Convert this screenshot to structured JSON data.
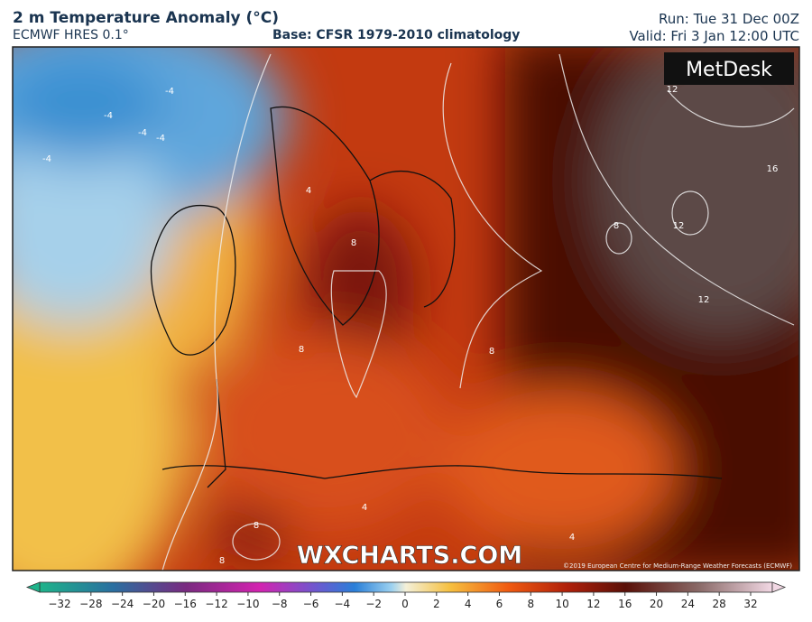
{
  "header": {
    "title": "2 m Temperature Anomaly (°C)",
    "model": "ECMWF HRES 0.1°",
    "base": "Base: CFSR 1979-2010 climatology",
    "run": "Run: Tue 31 Dec 00Z",
    "valid": "Valid: Fri 3 Jan 12:00 UTC"
  },
  "map": {
    "logo": "MetDesk",
    "watermark": "WXCHARTS.COM",
    "credit": "©2019 European Centre for Medium-Range Weather Forecasts (ECMWF)",
    "contour_labels": [
      "-4",
      "-4",
      "-4",
      "-4",
      "-4",
      "8",
      "8",
      "8",
      "8",
      "8",
      "8",
      "12",
      "12",
      "12",
      "16",
      "4",
      "4",
      "4"
    ]
  },
  "colorbar": {
    "ticks": [
      "−32",
      "−28",
      "−24",
      "−20",
      "−16",
      "−12",
      "−10",
      "−8",
      "−6",
      "−4",
      "−2",
      "0",
      "2",
      "4",
      "6",
      "8",
      "10",
      "12",
      "16",
      "20",
      "24",
      "28",
      "32"
    ]
  }
}
